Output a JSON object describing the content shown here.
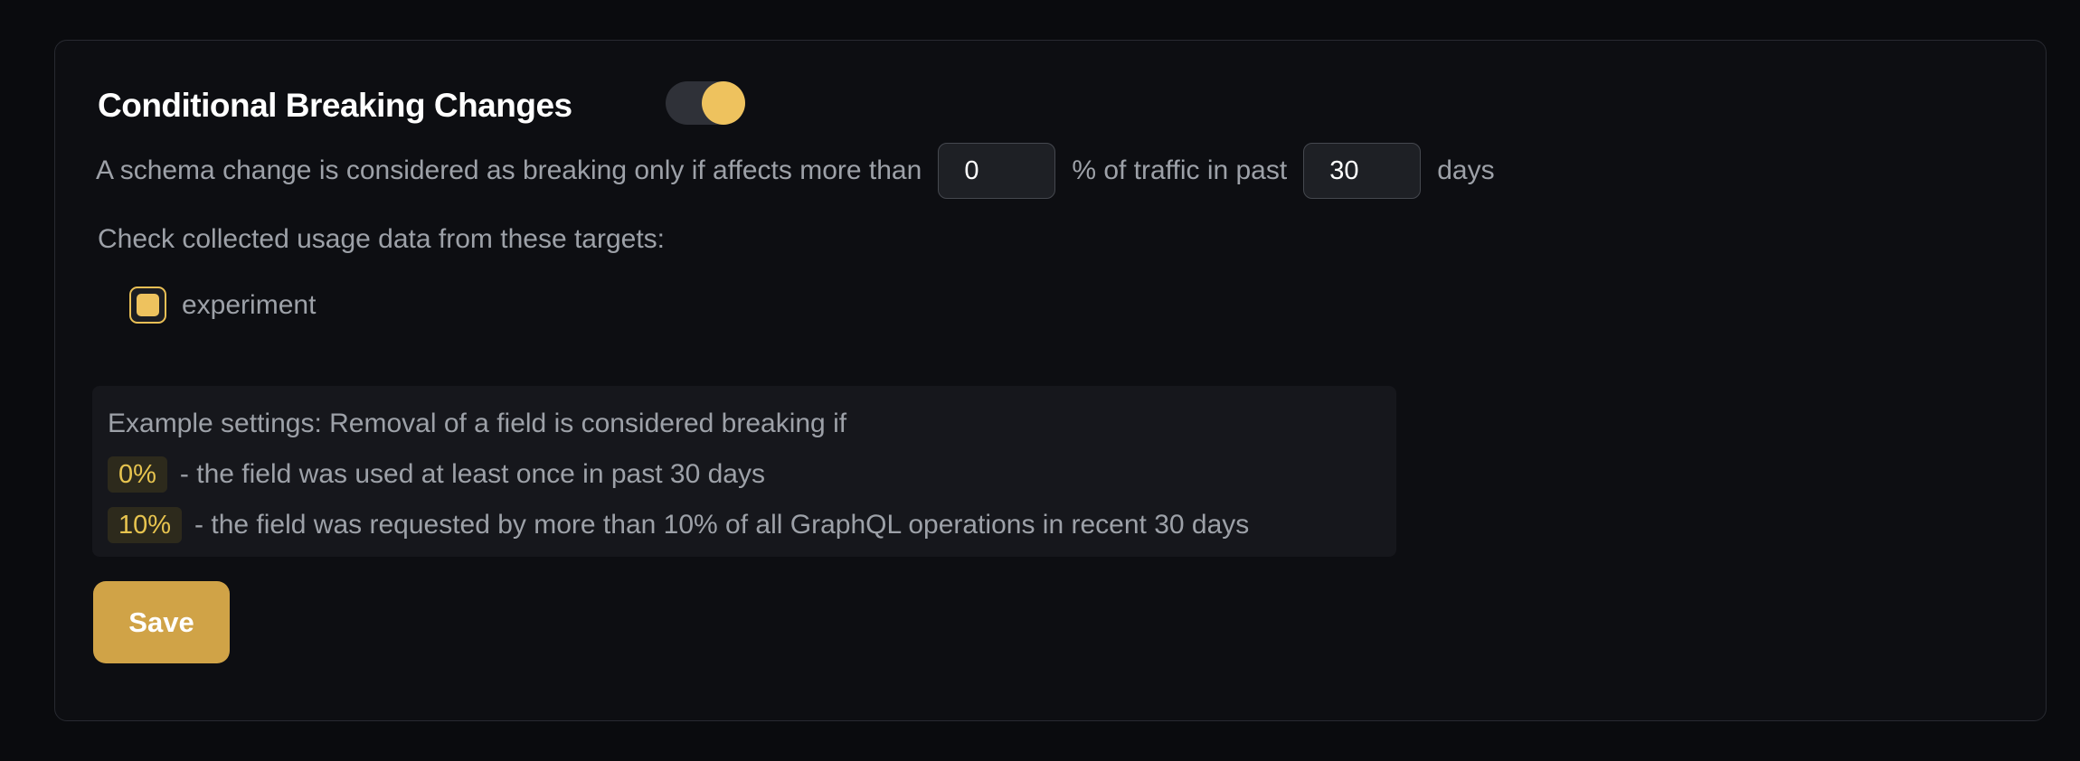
{
  "panel": {
    "title": "Conditional Breaking Changes",
    "toggle": {
      "checked": "true"
    },
    "threshold_sentence": {
      "part1": "A schema change is considered as breaking only if affects more than",
      "percentage_value": "0",
      "part2": "% of traffic in past",
      "days_value": "30",
      "part3": "days"
    },
    "targets": {
      "label": "Check collected usage data from these targets:",
      "items": [
        {
          "label": "experiment",
          "checked": "true"
        }
      ]
    },
    "example": {
      "intro": "Example settings: Removal of a field is considered breaking if",
      "rows": [
        {
          "badge": "0%",
          "text": "- the field was used at least once in past 30 days"
        },
        {
          "badge": "10%",
          "text": "- the field was requested by more than 10% of all GraphQL operations in recent 30 days"
        }
      ]
    },
    "save_label": "Save"
  },
  "colors": {
    "page_background": "#0a0b0e",
    "panel_background": "#0d0e12",
    "panel_border": "#282a31",
    "accent_yellow": "#eec25e",
    "checkbox_border_yellow": "#e9bf55",
    "save_button_gold": "#d0a347",
    "badge_background": "#2d2a1c",
    "badge_text_yellow": "#e7c44f",
    "muted_text_gray": "#9da1a8",
    "title_white": "#ffffff",
    "input_background": "#1e2025",
    "input_border": "#45484f",
    "toggle_track": "#2f3138",
    "example_box_background": "#16171c"
  }
}
